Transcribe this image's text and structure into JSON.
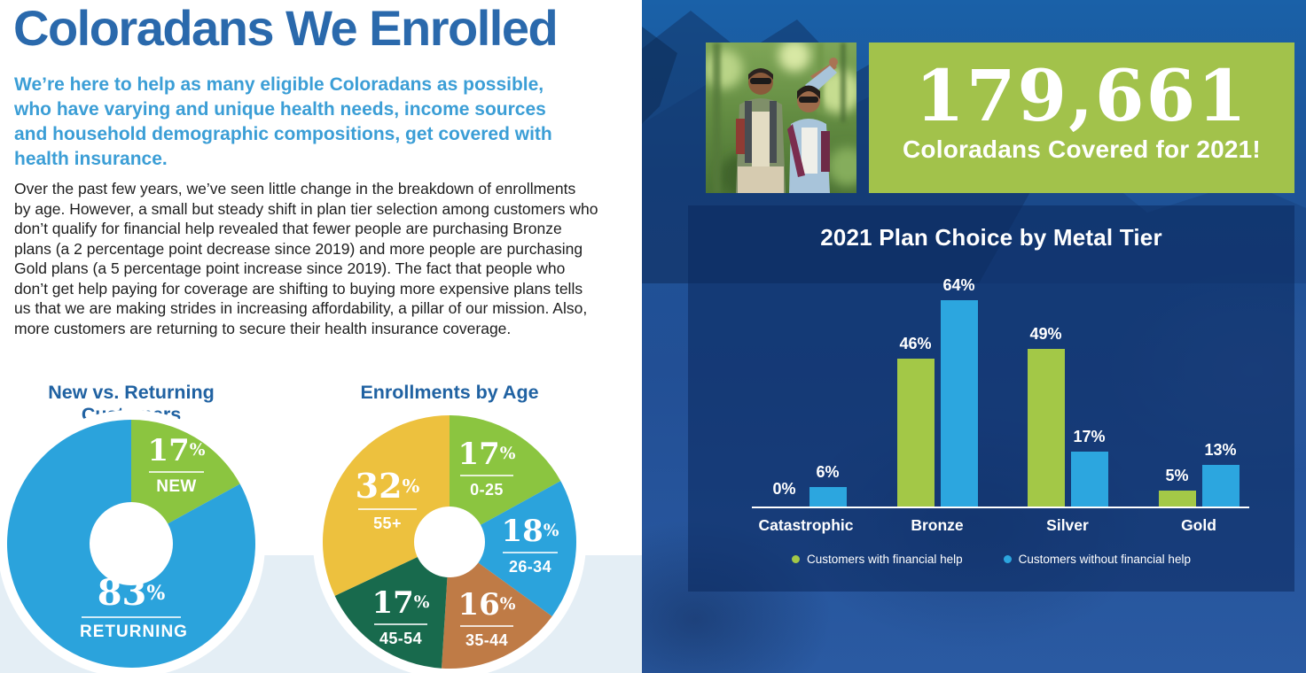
{
  "symbols": {
    "percent": "%"
  },
  "palette": {
    "title_blue": "#2a69ac",
    "lead_blue": "#3b9ed6",
    "section_title_blue": "#2062a2",
    "body_text": "#1e1e1e",
    "light_band": "#e4eef5",
    "right_background_top": "#1a61a8",
    "right_background_bottom": "#2a5aa2",
    "chart_panel_navy": "#16407f",
    "box_green": "#a2c24b",
    "bar_green": "#a3c847",
    "bar_blue": "#2ca6df",
    "pie_green": "#8bc540",
    "pie_blue": "#2ba3dc",
    "pie_brown": "#bf7b46",
    "pie_dark_green": "#186a4d",
    "pie_yellow": "#edc13e"
  },
  "left": {
    "title": "Coloradans We Enrolled",
    "lead": "We’re here to help as many eligible Coloradans as possible,\nwho have varying and unique health needs, income sources\nand household demographic compositions, get covered with\nhealth insurance.",
    "body": "Over the past few years, we’ve seen little change in the breakdown of enrollments\nby age. However, a small but steady shift in plan tier selection among customers who\ndon’t qualify for financial help revealed that fewer people are purchasing Bronze\nplans (a 2 percentage point decrease since 2019) and more people are purchasing\nGold plans (a 5 percentage point increase since 2019). The fact that people who\ndon’t get help paying for coverage are shifting to buying more expensive plans tells\nus that we are making strides in increasing affordability, a pillar of our mission. Also,\nmore customers are returning to secure their health insurance coverage."
  },
  "right": {
    "covered_number": "179,661",
    "covered_caption": "Coloradans Covered for 2021!"
  },
  "chart_data": [
    {
      "type": "pie",
      "title": "New vs. Returning Customers",
      "donut": true,
      "start_angle": "12-o-clock",
      "direction": "clockwise",
      "slices": [
        {
          "label": "NEW",
          "value": 17,
          "color": "#8bc540"
        },
        {
          "label": "RETURNING",
          "value": 83,
          "color": "#2ba3dc"
        }
      ]
    },
    {
      "type": "pie",
      "title": "Enrollments by Age",
      "donut": true,
      "start_angle": "12-o-clock",
      "direction": "clockwise",
      "slices": [
        {
          "label": "0-25",
          "value": 17,
          "color": "#8bc540"
        },
        {
          "label": "26-34",
          "value": 18,
          "color": "#2ba3dc"
        },
        {
          "label": "35-44",
          "value": 16,
          "color": "#bf7b46"
        },
        {
          "label": "45-54",
          "value": 17,
          "color": "#186a4d"
        },
        {
          "label": "55+",
          "value": 32,
          "color": "#edc13e"
        }
      ]
    },
    {
      "type": "bar",
      "title": "2021 Plan Choice by Metal Tier",
      "categories": [
        "Catastrophic",
        "Bronze",
        "Silver",
        "Gold"
      ],
      "series": [
        {
          "name": "Customers with financial help",
          "color": "#a3c847",
          "values": [
            0,
            46,
            49,
            5
          ]
        },
        {
          "name": "Customers without financial help",
          "color": "#2ca6df",
          "values": [
            6,
            64,
            17,
            13
          ]
        }
      ],
      "value_label_format": "percent",
      "ylim": [
        0,
        70
      ],
      "grid": false,
      "legend_position": "bottom"
    }
  ]
}
